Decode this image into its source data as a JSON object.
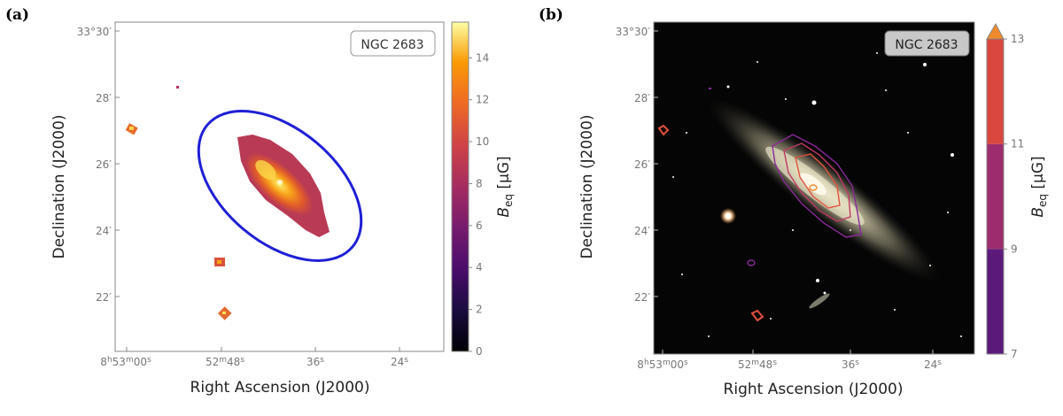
{
  "panels": [
    {
      "label": "(a)",
      "object": "NGC 2683",
      "xlabel": "Right Ascension (J2000)",
      "ylabel": "Declination (J2000)",
      "ra_ticks": [
        "8h53m00s",
        "52m48s",
        "36s",
        "24s"
      ],
      "dec_ticks": [
        "33°30′",
        "28′",
        "26′",
        "24′",
        "22′"
      ],
      "colorbar": {
        "label": "Beq [μG]",
        "label_main": "B",
        "label_sub": "eq",
        "label_unit": " [μG]",
        "ticks": [
          "0",
          "2",
          "4",
          "6",
          "8",
          "10",
          "12",
          "14"
        ],
        "colormap": "inferno",
        "range": [
          0,
          15.7
        ]
      },
      "ellipse_color": "#1f1fd6"
    },
    {
      "label": "(b)",
      "object": "NGC 2683",
      "xlabel": "Right Ascension (J2000)",
      "ylabel": "Declination (J2000)",
      "ra_ticks": [
        "8h53m00s",
        "52m48s",
        "36s",
        "24s"
      ],
      "dec_ticks": [
        "33°30′",
        "28′",
        "26′",
        "24′",
        "22′"
      ],
      "colorbar": {
        "label": "Beq [μG]",
        "label_main": "B",
        "label_sub": "eq",
        "label_unit": " [μG]",
        "ticks": [
          "7",
          "9",
          "11",
          "13"
        ],
        "levels": [
          {
            "from": 7,
            "to": 9,
            "color": "#5b1a7a"
          },
          {
            "from": 9,
            "to": 11,
            "color": "#9c2c6e"
          },
          {
            "from": 11,
            "to": 13,
            "color": "#d9473e"
          },
          {
            "from": 13,
            "to": 14,
            "color": "#f08a2c"
          }
        ],
        "extend": "max"
      },
      "contour_colors": [
        "#8a2a9a",
        "#c23a63",
        "#e4513c",
        "#f58a2a"
      ]
    }
  ]
}
